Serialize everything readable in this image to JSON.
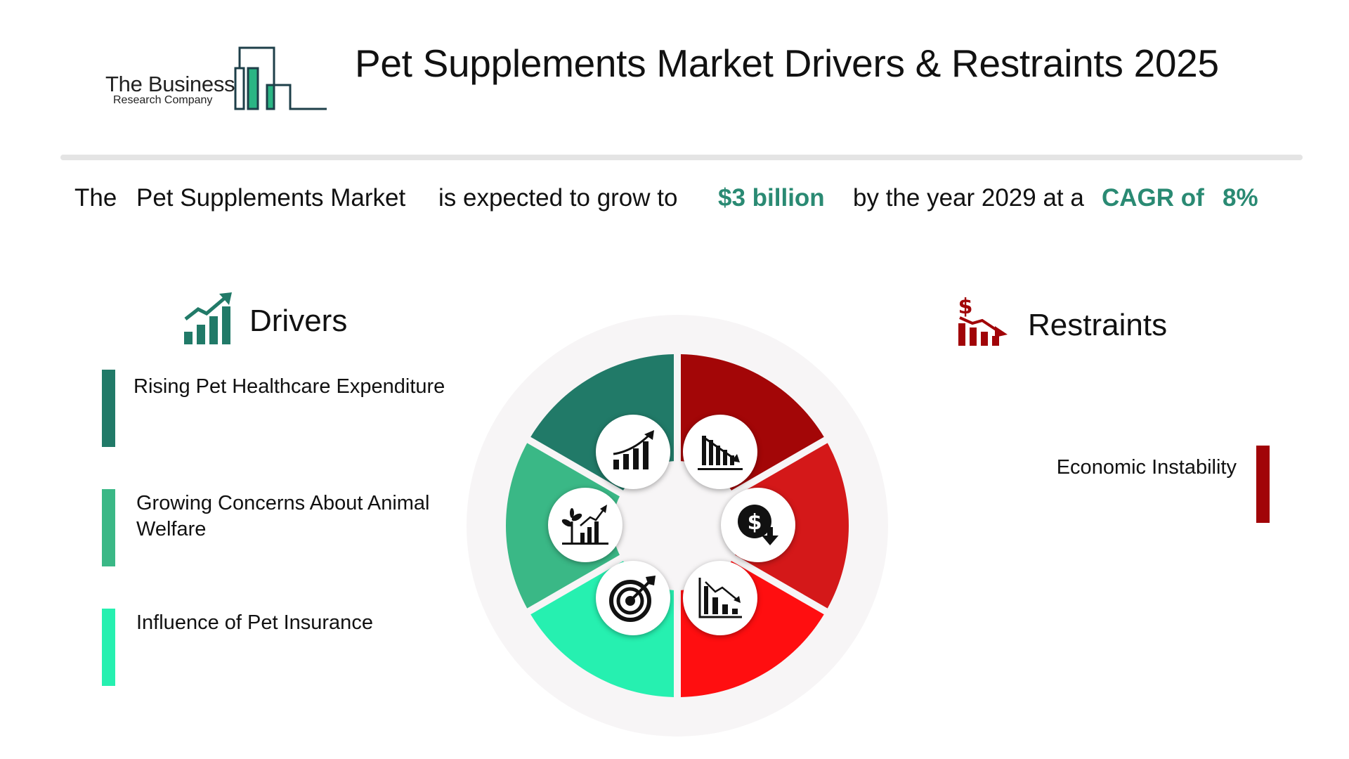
{
  "logo": {
    "line1": "The Business",
    "line2": "Research Company"
  },
  "title": "Pet Supplements Market Drivers & Restraints 2025",
  "summary": {
    "prefix": "The",
    "market": "Pet Supplements Market",
    "mid": "is expected to grow to",
    "value": "$3 billion",
    "year_text": "by the year 2029 at a",
    "cagr_label": "CAGR of",
    "cagr_value": "8%"
  },
  "drivers": {
    "title": "Drivers",
    "icon": "growth-chart-icon",
    "items": [
      {
        "label": "Rising Pet Healthcare Expenditure",
        "color": "#217a68"
      },
      {
        "label": "Growing Concerns About Animal Welfare",
        "color": "#3ab886"
      },
      {
        "label": "Influence of Pet Insurance",
        "color": "#26f0b0"
      }
    ]
  },
  "restraints": {
    "title": "Restraints",
    "icon": "declining-dollar-chart-icon",
    "items": [
      {
        "label": "Economic Instability",
        "color": "#a10408"
      }
    ]
  },
  "wheel": {
    "segment_colors": [
      "#a30607",
      "#d41819",
      "#ff0e10",
      "#26f0b0",
      "#3ab886",
      "#217a68"
    ],
    "icons": [
      "declining-bars-icon",
      "dollar-down-icon",
      "declining-chart-icon",
      "target-arrow-icon",
      "plant-growth-chart-icon",
      "growth-bars-icon"
    ]
  }
}
